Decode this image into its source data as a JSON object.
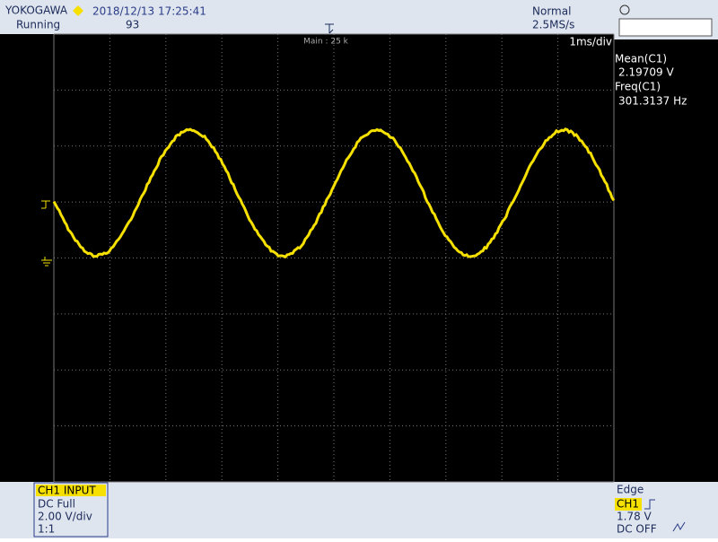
{
  "header": {
    "brand": "YOKOGAWA",
    "datetime": "2018/12/13 17:25:41",
    "status": "Running",
    "count": "93",
    "mode": "Normal",
    "sample_rate": "2.5MS/s"
  },
  "screen": {
    "zoom": "Main : 25 k",
    "timebase": "1ms/div"
  },
  "measurements": [
    {
      "label": "Mean(C1)",
      "value": "2.19709 V"
    },
    {
      "label": "Freq(C1)",
      "value": "301.3137 Hz"
    }
  ],
  "channel": {
    "title": "CH1 INPUT",
    "coupling": "DC Full",
    "scale": "2.00 V/div",
    "probe": "1:1"
  },
  "trigger": {
    "type": "Edge",
    "source": "CH1",
    "level": "1.78 V",
    "coupling": "DC OFF"
  }
}
